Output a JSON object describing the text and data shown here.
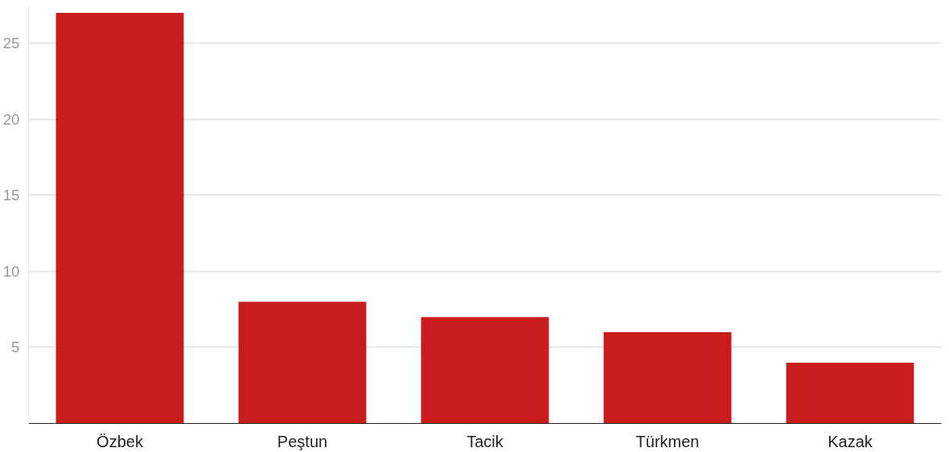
{
  "chart_data": {
    "type": "bar",
    "categories": [
      "Özbek",
      "Peştun",
      "Tacik",
      "Türkmen",
      "Kazak"
    ],
    "values": [
      27,
      8,
      7,
      6,
      4
    ],
    "color": "#c91d1d",
    "ylim": [
      0,
      27.4
    ],
    "yticks": [
      5,
      10,
      15,
      20,
      25
    ],
    "grid": "y"
  }
}
